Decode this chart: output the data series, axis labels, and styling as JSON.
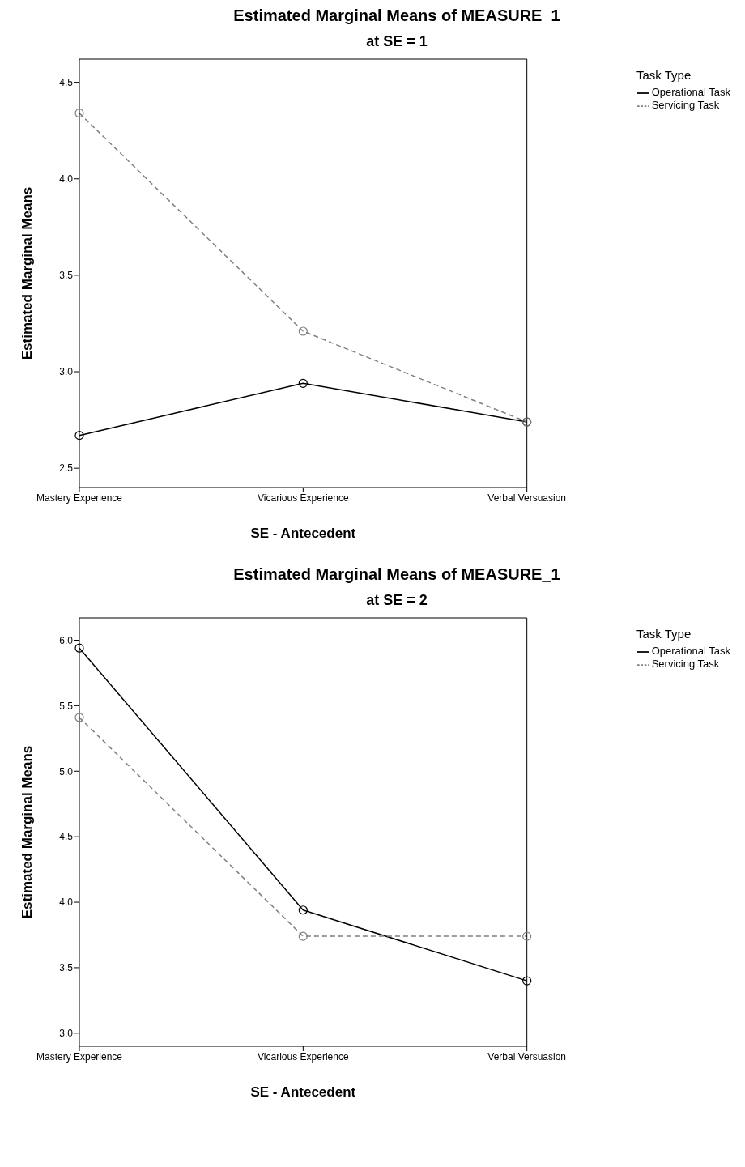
{
  "chart_data": [
    {
      "type": "line",
      "title": "Estimated Marginal Means of MEASURE_1",
      "subtitle": "at SE = 1",
      "xlabel": "SE - Antecedent",
      "ylabel": "Estimated Marginal Means",
      "legend_title": "Task Type",
      "categories": [
        "Mastery Experience",
        "Vicarious Experience",
        "Verbal Versuasion"
      ],
      "series": [
        {
          "name": "Operational Task",
          "color": "#000000",
          "line_style": "solid",
          "values": [
            2.67,
            2.94,
            2.74
          ]
        },
        {
          "name": "Servicing Task",
          "color": "#808080",
          "line_style": "dashed",
          "values": [
            4.34,
            3.21,
            2.74
          ]
        }
      ],
      "ylim": [
        2.4,
        4.62
      ],
      "yticks": [
        2.5,
        {
          "value": 3,
          "label": "3.0"
        },
        3.5,
        {
          "value": 4,
          "label": "4.0"
        },
        4.5
      ],
      "marker": "circle",
      "grid": false,
      "legend": "top right"
    },
    {
      "type": "line",
      "title": "Estimated Marginal Means of MEASURE_1",
      "subtitle": "at SE = 2",
      "xlabel": "SE - Antecedent",
      "ylabel": "Estimated Marginal Means",
      "legend_title": "Task Type",
      "categories": [
        "Mastery Experience",
        "Vicarious Experience",
        "Verbal Versuasion"
      ],
      "series": [
        {
          "name": "Operational Task",
          "color": "#000000",
          "line_style": "solid",
          "values": [
            5.94,
            3.94,
            3.4
          ]
        },
        {
          "name": "Servicing Task",
          "color": "#808080",
          "line_style": "dashed",
          "values": [
            5.41,
            3.74,
            3.74
          ]
        }
      ],
      "ylim": [
        2.9,
        6.17
      ],
      "yticks": [
        {
          "value": 3,
          "label": "3.0"
        },
        3.5,
        {
          "value": 4,
          "label": "4.0"
        },
        4.5,
        {
          "value": 5,
          "label": "5.0"
        },
        5.5,
        {
          "value": 6,
          "label": "6.0"
        }
      ],
      "marker": "circle",
      "grid": false,
      "legend": "top right"
    }
  ]
}
